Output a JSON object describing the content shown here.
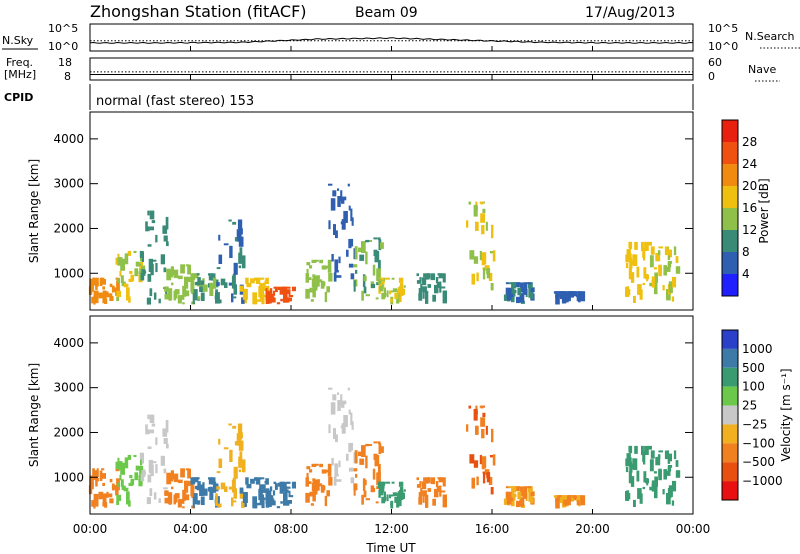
{
  "header": {
    "station": "Zhongshan Station (fitACF)",
    "beam": "Beam 09",
    "date": "17/Aug/2013"
  },
  "noise_panel": {
    "left_label": "N.Sky",
    "left_ticks": [
      "10^5",
      "10^0"
    ],
    "right_label": "N.Search",
    "right_ticks": [
      "10^5",
      "10^0"
    ]
  },
  "freq_panel": {
    "left_label_1": "Freq.",
    "left_label_2": "[MHz]",
    "left_ticks": [
      "18",
      "8"
    ],
    "right_label": "Nave",
    "right_ticks": [
      "60",
      "0"
    ]
  },
  "cpid": {
    "label": "CPID",
    "text": "normal (fast stereo) 153"
  },
  "x_axis": {
    "label": "Time UT",
    "ticks": [
      "00:00",
      "04:00",
      "08:00",
      "12:00",
      "16:00",
      "20:00",
      "00:00"
    ]
  },
  "y_axis": {
    "label": "Slant Range [km]",
    "ticks": [
      "1000",
      "2000",
      "3000",
      "4000"
    ]
  },
  "power_colorbar": {
    "label": "Power [dB]",
    "ticks": [
      "4",
      "8",
      "12",
      "16",
      "20",
      "24",
      "28"
    ],
    "colors": [
      "#1f1fff",
      "#2e5fb0",
      "#3a8a78",
      "#8fc049",
      "#f0c010",
      "#f08a10",
      "#f05010",
      "#e82010"
    ]
  },
  "velocity_colorbar": {
    "label": "Velocity [m s⁻¹]",
    "ticks": [
      "1000",
      "500",
      "100",
      "25",
      "−25",
      "−100",
      "−500",
      "−1000"
    ],
    "colors": [
      "#2a40c8",
      "#3e7aa8",
      "#3a9a70",
      "#6cc84a",
      "#c8c8c8",
      "#f0b020",
      "#f08020",
      "#e85010",
      "#e81010"
    ]
  },
  "chart_data": [
    {
      "type": "line",
      "title": "N.Sky / N.Search",
      "x": [
        "00:00",
        "04:00",
        "08:00",
        "10:00",
        "12:00",
        "14:00",
        "16:00",
        "20:00",
        "00:00"
      ],
      "series": [
        {
          "name": "N.Sky",
          "values": [
            1.5,
            1.5,
            1.6,
            2.2,
            2.4,
            2.0,
            1.6,
            1.5,
            1.5
          ]
        }
      ]
    },
    {
      "type": "line",
      "title": "Freq. / Nave",
      "x": [
        "00:00",
        "04:00",
        "08:00",
        "12:00",
        "16:00",
        "20:00",
        "00:00"
      ],
      "series": [
        {
          "name": "Freq.",
          "values": [
            10.5,
            10.5,
            10.5,
            10.5,
            10.5,
            10.5,
            10.5
          ]
        },
        {
          "name": "Nave",
          "values": [
            22,
            22,
            22,
            22,
            22,
            22,
            22
          ]
        }
      ]
    },
    {
      "type": "heatmap",
      "title": "Power [dB]",
      "xlabel": "Time UT",
      "ylabel": "Slant Range [km]",
      "xlim": [
        0,
        24
      ],
      "ylim": [
        180,
        4600
      ],
      "regions": [
        {
          "t": 0.5,
          "r": [
            300,
            900
          ],
          "v": 22
        },
        {
          "t": 1.5,
          "r": [
            300,
            1500
          ],
          "v": 16
        },
        {
          "t": 2.5,
          "r": [
            300,
            2400
          ],
          "v": 10
        },
        {
          "t": 3.5,
          "r": [
            300,
            1200
          ],
          "v": 14
        },
        {
          "t": 4.5,
          "r": [
            300,
            1000
          ],
          "v": 12
        },
        {
          "t": 5.5,
          "r": [
            300,
            2200
          ],
          "v": 8
        },
        {
          "t": 6.5,
          "r": [
            300,
            900
          ],
          "v": 18
        },
        {
          "t": 7.5,
          "r": [
            300,
            700
          ],
          "v": 26
        },
        {
          "t": 9.0,
          "r": [
            300,
            1300
          ],
          "v": 14
        },
        {
          "t": 10.0,
          "r": [
            800,
            3000
          ],
          "v": 6
        },
        {
          "t": 11.0,
          "r": [
            300,
            1800
          ],
          "v": 12
        },
        {
          "t": 12.0,
          "r": [
            300,
            900
          ],
          "v": 16
        },
        {
          "t": 13.5,
          "r": [
            300,
            1000
          ],
          "v": 10
        },
        {
          "t": 15.5,
          "r": [
            300,
            2600
          ],
          "v": 16
        },
        {
          "t": 17.0,
          "r": [
            300,
            800
          ],
          "v": 8
        },
        {
          "t": 19.0,
          "r": [
            300,
            600
          ],
          "v": 6
        },
        {
          "t": 21.8,
          "r": [
            300,
            1700
          ],
          "v": 18
        },
        {
          "t": 22.8,
          "r": [
            300,
            1600
          ],
          "v": 16
        }
      ]
    },
    {
      "type": "heatmap",
      "title": "Velocity [m s⁻¹]",
      "xlabel": "Time UT",
      "ylabel": "Slant Range [km]",
      "xlim": [
        0,
        24
      ],
      "ylim": [
        180,
        4600
      ],
      "regions": [
        {
          "t": 0.5,
          "r": [
            300,
            1200
          ],
          "v": -300
        },
        {
          "t": 1.5,
          "r": [
            300,
            1500
          ],
          "v": 50
        },
        {
          "t": 2.5,
          "r": [
            400,
            2400
          ],
          "v": 10
        },
        {
          "t": 3.5,
          "r": [
            300,
            1200
          ],
          "v": -200
        },
        {
          "t": 4.5,
          "r": [
            300,
            1000
          ],
          "v": 600
        },
        {
          "t": 5.5,
          "r": [
            300,
            2200
          ],
          "v": -60
        },
        {
          "t": 6.5,
          "r": [
            300,
            1000
          ],
          "v": 900
        },
        {
          "t": 7.5,
          "r": [
            300,
            900
          ],
          "v": 900
        },
        {
          "t": 9.0,
          "r": [
            300,
            1300
          ],
          "v": -150
        },
        {
          "t": 10.0,
          "r": [
            800,
            3000
          ],
          "v": 10
        },
        {
          "t": 11.0,
          "r": [
            300,
            1800
          ],
          "v": -300
        },
        {
          "t": 12.0,
          "r": [
            300,
            900
          ],
          "v": 150
        },
        {
          "t": 13.5,
          "r": [
            300,
            1000
          ],
          "v": -200
        },
        {
          "t": 15.5,
          "r": [
            300,
            2600
          ],
          "v": -500
        },
        {
          "t": 17.0,
          "r": [
            300,
            800
          ],
          "v": -100
        },
        {
          "t": 19.0,
          "r": [
            300,
            600
          ],
          "v": -100
        },
        {
          "t": 21.8,
          "r": [
            300,
            1700
          ],
          "v": 400
        },
        {
          "t": 22.8,
          "r": [
            300,
            1600
          ],
          "v": 300
        }
      ]
    }
  ]
}
